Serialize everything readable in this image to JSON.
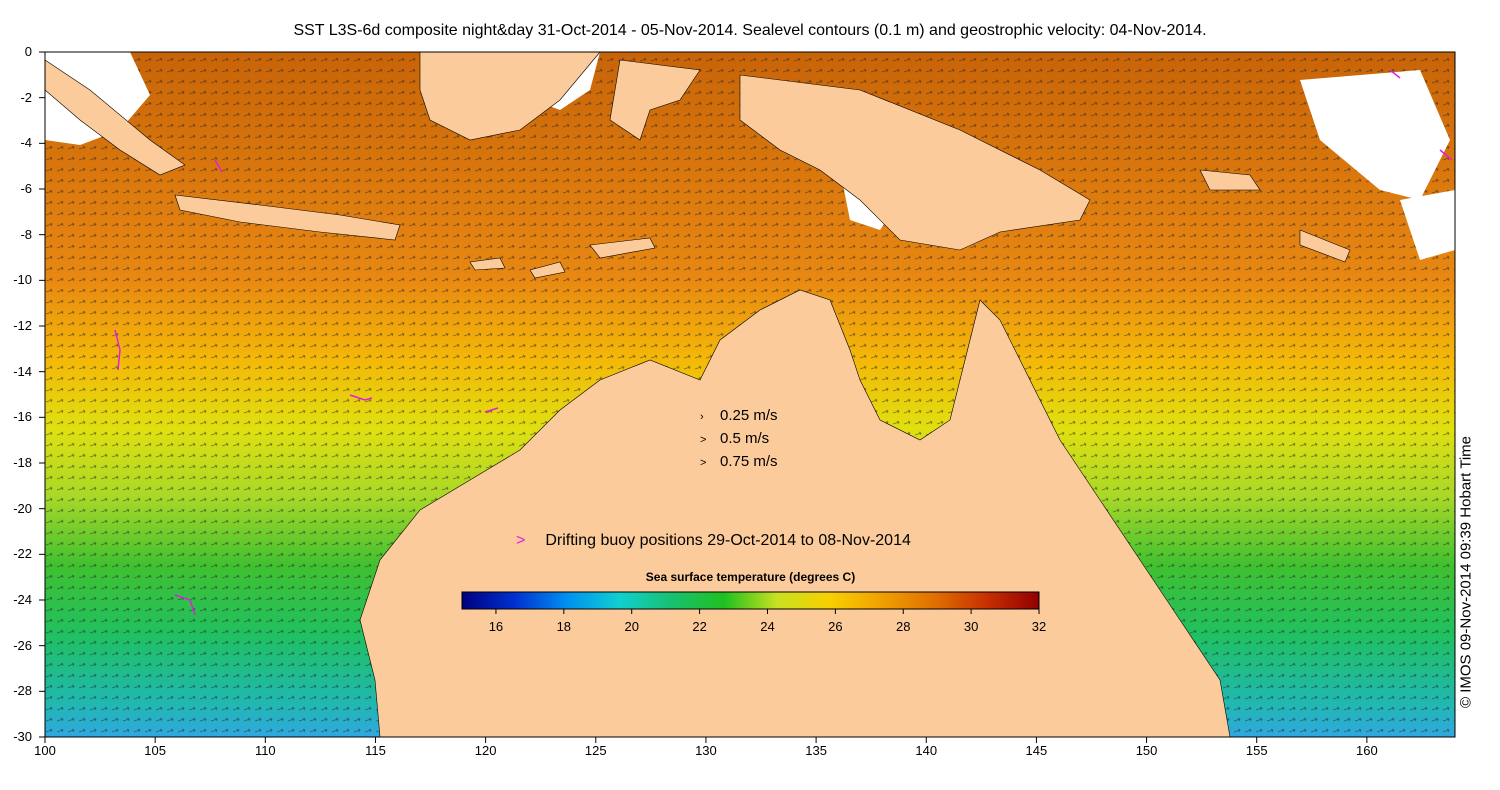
{
  "title": "SST L3S-6d composite night&day 31-Oct-2014 - 05-Nov-2014. Sealevel contours (0.1 m) and geostrophic velocity: 04-Nov-2014.",
  "credit": "© IMOS 09-Nov-2014 09:39 Hobart Time",
  "map": {
    "lon_range": [
      100,
      164
    ],
    "lat_range": [
      -30,
      0
    ],
    "x_ticks": [
      "100",
      "105",
      "110",
      "115",
      "120",
      "125",
      "130",
      "135",
      "140",
      "145",
      "150",
      "155",
      "160"
    ],
    "y_ticks": [
      "0",
      "-2",
      "-4",
      "-6",
      "-8",
      "-10",
      "-12",
      "-14",
      "-16",
      "-18",
      "-20",
      "-22",
      "-24",
      "-26",
      "-28",
      "-30"
    ],
    "land_color": "#fccb9b",
    "no_data_color": "#ffffff"
  },
  "speed_legend": [
    {
      "arrow": "›",
      "label": "0.25 m/s"
    },
    {
      "arrow": ">",
      "label": "0.5 m/s"
    },
    {
      "arrow": ">",
      "label": "0.75 m/s"
    }
  ],
  "buoy_legend": {
    "marker": ">",
    "marker_color": "#e020e0",
    "label": "Drifting buoy positions 29-Oct-2014 to 08-Nov-2014"
  },
  "colorbar": {
    "title": "Sea surface temperature (degrees C)",
    "range": [
      15,
      32
    ],
    "tick_labels": [
      "16",
      "18",
      "20",
      "22",
      "24",
      "26",
      "28",
      "30",
      "32"
    ],
    "colors": [
      "#00007f",
      "#0030d0",
      "#0090f0",
      "#10d0d0",
      "#18c070",
      "#20c020",
      "#c8e020",
      "#f8d000",
      "#f0a000",
      "#e07000",
      "#c83000",
      "#900000"
    ]
  }
}
